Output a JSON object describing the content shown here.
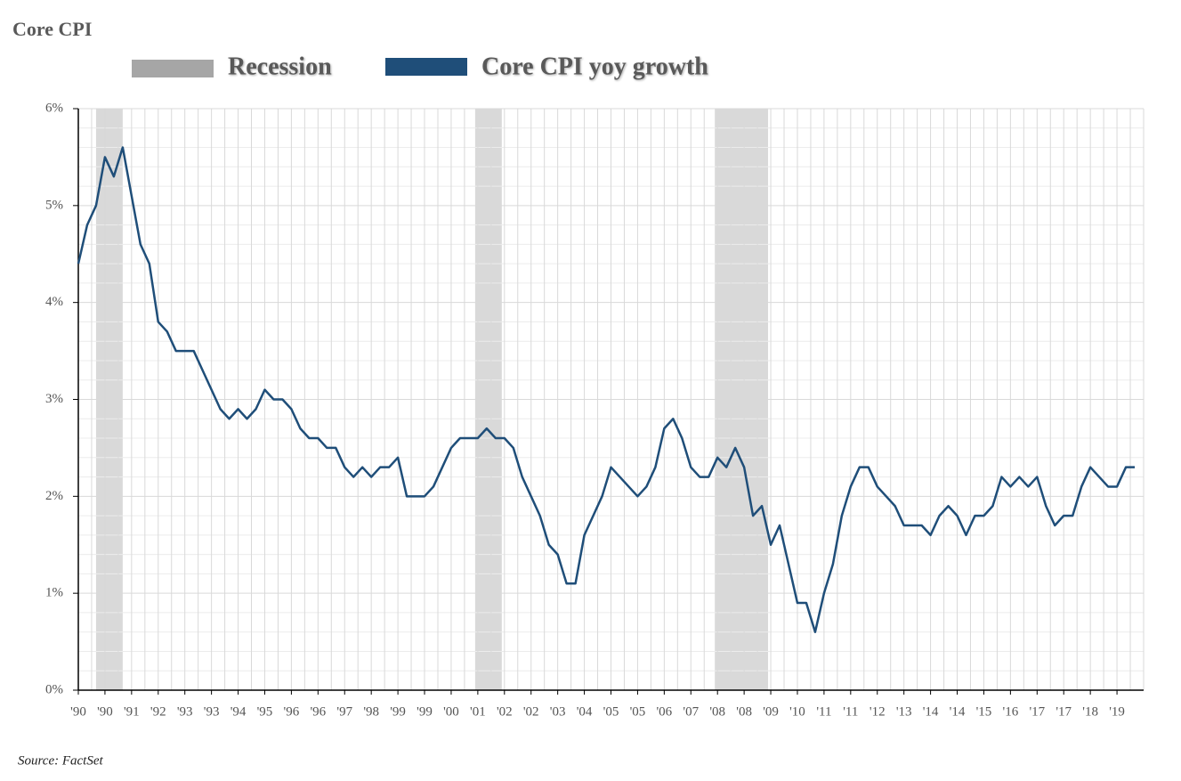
{
  "chart_data": {
    "type": "line",
    "title": "Core CPI",
    "source": "Source: FactSet",
    "categories": [
      "'90",
      null,
      null,
      "'90",
      null,
      null,
      "'91",
      null,
      null,
      "'92",
      null,
      null,
      "'93",
      null,
      null,
      "'93",
      null,
      null,
      "'94",
      null,
      null,
      "'95",
      null,
      null,
      "'96",
      null,
      null,
      "'96",
      null,
      null,
      "'97",
      null,
      null,
      "'98",
      null,
      null,
      "'99",
      null,
      null,
      "'99",
      null,
      null,
      "'00",
      null,
      null,
      "'01",
      null,
      null,
      "'02",
      null,
      null,
      "'02",
      null,
      null,
      "'03",
      null,
      null,
      "'04",
      null,
      null,
      "'05",
      null,
      null,
      "'05",
      null,
      null,
      "'06",
      null,
      null,
      "'07",
      null,
      null,
      "'08",
      null,
      null,
      "'08",
      null,
      null,
      "'09",
      null,
      null,
      "'10",
      null,
      null,
      "'11",
      null,
      null,
      "'11",
      null,
      null,
      "'12",
      null,
      null,
      "'13",
      null,
      null,
      "'14",
      null,
      null,
      "'14",
      null,
      null,
      "'15",
      null,
      null,
      "'16",
      null,
      null,
      "'17",
      null,
      null,
      "'17",
      null,
      null,
      "'18",
      null,
      null,
      "'19",
      null,
      null
    ],
    "series": [
      {
        "name": "Core CPI yoy growth",
        "color": "#1f4e79",
        "values": [
          4.4,
          4.8,
          5.0,
          5.5,
          5.3,
          5.6,
          5.1,
          4.6,
          4.4,
          3.8,
          3.7,
          3.5,
          3.5,
          3.5,
          3.3,
          3.1,
          2.9,
          2.8,
          2.9,
          2.8,
          2.9,
          3.1,
          3.0,
          3.0,
          2.9,
          2.7,
          2.6,
          2.6,
          2.5,
          2.5,
          2.3,
          2.2,
          2.3,
          2.2,
          2.3,
          2.3,
          2.4,
          2.0,
          2.0,
          2.0,
          2.1,
          2.3,
          2.5,
          2.6,
          2.6,
          2.6,
          2.7,
          2.6,
          2.6,
          2.5,
          2.2,
          2.0,
          1.8,
          1.5,
          1.4,
          1.1,
          1.1,
          1.6,
          1.8,
          2.0,
          2.3,
          2.2,
          2.1,
          2.0,
          2.1,
          2.3,
          2.7,
          2.8,
          2.6,
          2.3,
          2.2,
          2.2,
          2.4,
          2.3,
          2.5,
          2.3,
          1.8,
          1.9,
          1.5,
          1.7,
          1.3,
          0.9,
          0.9,
          0.6,
          1.0,
          1.3,
          1.8,
          2.1,
          2.3,
          2.3,
          2.1,
          2.0,
          1.9,
          1.7,
          1.7,
          1.7,
          1.6,
          1.8,
          1.9,
          1.8,
          1.6,
          1.8,
          1.8,
          1.9,
          2.2,
          2.1,
          2.2,
          2.1,
          2.2,
          1.9,
          1.7,
          1.8,
          1.8,
          2.1,
          2.3,
          2.2,
          2.1,
          2.1,
          2.3,
          2.3
        ]
      }
    ],
    "shading": {
      "name": "Recession",
      "color": "#d9d9d9",
      "legend_color": "#a6a6a6",
      "ranges": [
        [
          2,
          5
        ],
        [
          44.7,
          47.7
        ],
        [
          71.7,
          77.7
        ]
      ]
    },
    "ylim": [
      0,
      6
    ],
    "yticks": [
      {
        "value": 0,
        "label": "0%"
      },
      {
        "value": 1,
        "label": "1%"
      },
      {
        "value": 2,
        "label": "2%"
      },
      {
        "value": 3,
        "label": "3%"
      },
      {
        "value": 4,
        "label": "4%"
      },
      {
        "value": 5,
        "label": "5%"
      },
      {
        "value": 6,
        "label": "6%"
      }
    ],
    "grid": true
  }
}
